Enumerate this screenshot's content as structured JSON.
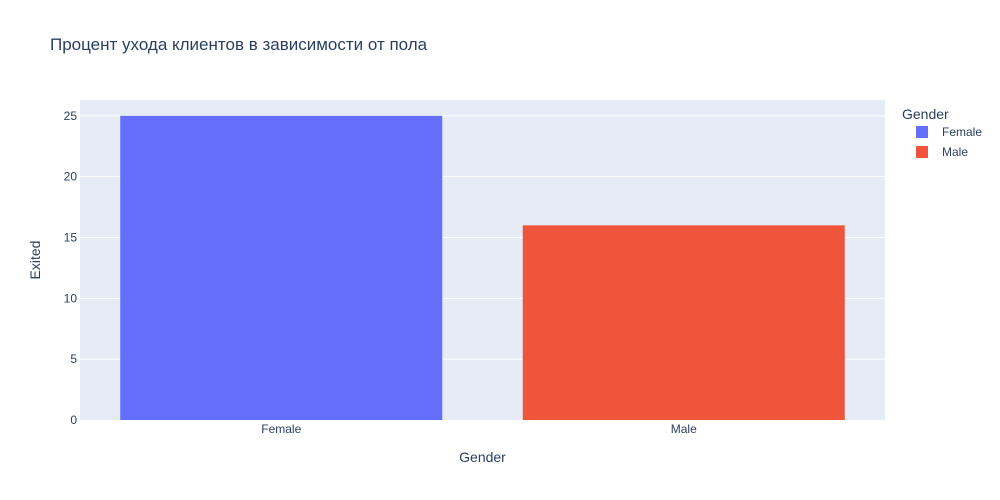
{
  "chart_data": {
    "type": "bar",
    "title": "Процент ухода клиентов в зависимости от пола",
    "xlabel": "Gender",
    "ylabel": "Exited",
    "categories": [
      "Female",
      "Male"
    ],
    "series": [
      {
        "name": "Female",
        "values": [
          25,
          null
        ],
        "color": "#636efa"
      },
      {
        "name": "Male",
        "values": [
          null,
          16
        ],
        "color": "#ef553b"
      }
    ],
    "ylim": [
      0,
      26.3
    ],
    "yticks": [
      0,
      5,
      10,
      15,
      20,
      25
    ],
    "grid": true,
    "legend": {
      "title": "Gender",
      "placement": "top-right",
      "entries": [
        "Female",
        "Male"
      ]
    },
    "plot_background": "#e5ecf6"
  }
}
